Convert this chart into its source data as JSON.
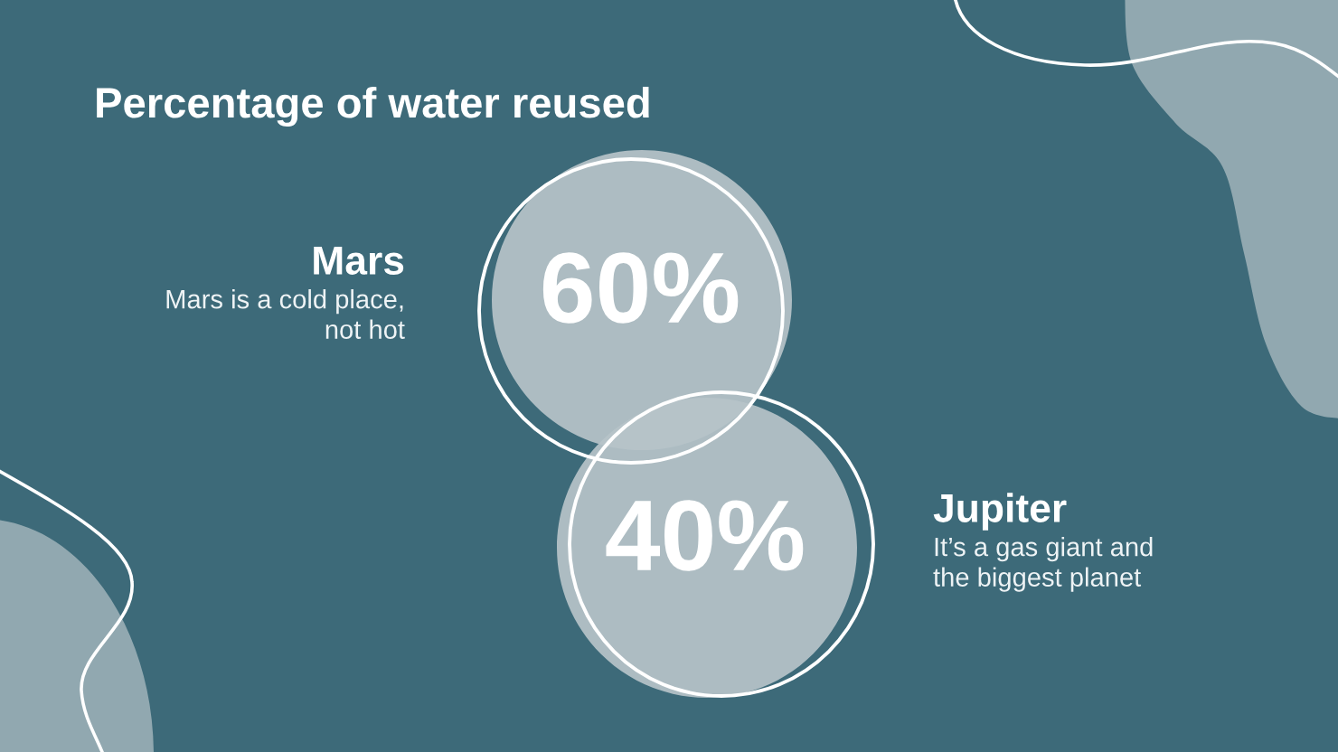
{
  "chart_data": {
    "type": "other",
    "title": "Percentage of water reused",
    "categories": [
      "Mars",
      "Jupiter"
    ],
    "values": [
      60,
      40
    ],
    "value_labels": [
      "60%",
      "40%"
    ],
    "colors": [
      "#b6c3c9",
      "#b6c3c9"
    ],
    "annotations": [
      "Mars is a cold place,\nnot hot",
      "It’s a gas giant and\nthe biggest planet"
    ]
  }
}
